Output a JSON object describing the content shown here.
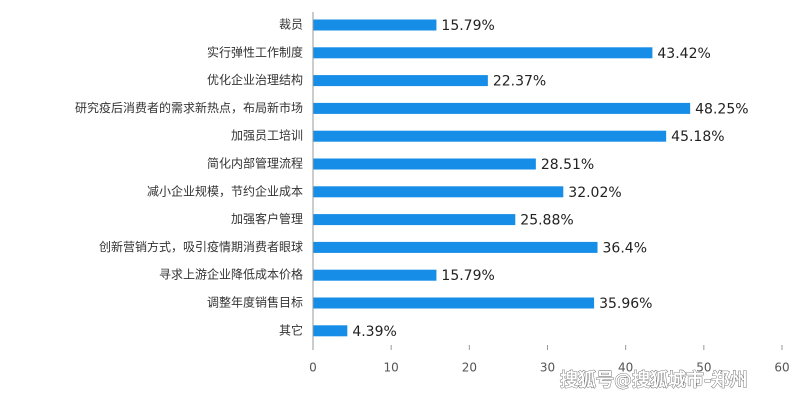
{
  "chart_data": {
    "type": "bar",
    "orientation": "horizontal",
    "categories": [
      "裁员",
      "实行弹性工作制度",
      "优化企业治理结构",
      "研究疫后消费者的需求新热点，布局新市场",
      "加强员工培训",
      "简化内部管理流程",
      "减小企业规模，节约企业成本",
      "加强客户管理",
      "创新营销方式，吸引疫情期消费者眼球",
      "寻求上游企业降低成本价格",
      "调整年度销售目标",
      "其它"
    ],
    "values": [
      15.79,
      43.42,
      22.37,
      48.25,
      45.18,
      28.51,
      32.02,
      25.88,
      36.4,
      15.79,
      35.96,
      4.39
    ],
    "value_labels": [
      "15.79%",
      "43.42%",
      "22.37%",
      "48.25%",
      "45.18%",
      "28.51%",
      "32.02%",
      "25.88%",
      "36.4%",
      "15.79%",
      "35.96%",
      "4.39%"
    ],
    "color": "#168de6",
    "xlim": [
      0,
      60
    ],
    "xticks": [
      0,
      10,
      20,
      30,
      40,
      50,
      60
    ],
    "watermark": "搜狐号@搜狐城市-郑州"
  }
}
